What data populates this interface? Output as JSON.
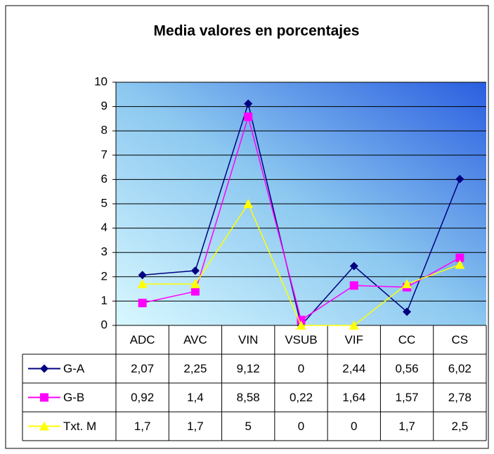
{
  "chart_data": {
    "type": "line",
    "title": "Media valores en porcentajes",
    "categories": [
      "ADC",
      "AVC",
      "VIN",
      "VSUB",
      "VIF",
      "CC",
      "CS"
    ],
    "series": [
      {
        "name": "G-A",
        "color": "#000080",
        "marker": "diamond",
        "values": [
          2.07,
          2.25,
          9.12,
          0,
          2.44,
          0.56,
          6.02
        ],
        "value_labels": [
          "2,07",
          "2,25",
          "9,12",
          "0",
          "2,44",
          "0,56",
          "6,02"
        ]
      },
      {
        "name": "G-B",
        "color": "#ff00ff",
        "marker": "square",
        "values": [
          0.92,
          1.4,
          8.58,
          0.22,
          1.64,
          1.57,
          2.78
        ],
        "value_labels": [
          "0,92",
          "1,4",
          "8,58",
          "0,22",
          "1,64",
          "1,57",
          "2,78"
        ]
      },
      {
        "name": "Txt. M",
        "color": "#ffff00",
        "marker": "triangle",
        "values": [
          1.7,
          1.7,
          5,
          0,
          0,
          1.7,
          2.5
        ],
        "value_labels": [
          "1,7",
          "1,7",
          "5",
          "0",
          "0",
          "1,7",
          "2,5"
        ]
      }
    ],
    "ylim": [
      0,
      10
    ],
    "yticks": [
      0,
      1,
      2,
      3,
      4,
      5,
      6,
      7,
      8,
      9,
      10
    ],
    "grid": true
  }
}
